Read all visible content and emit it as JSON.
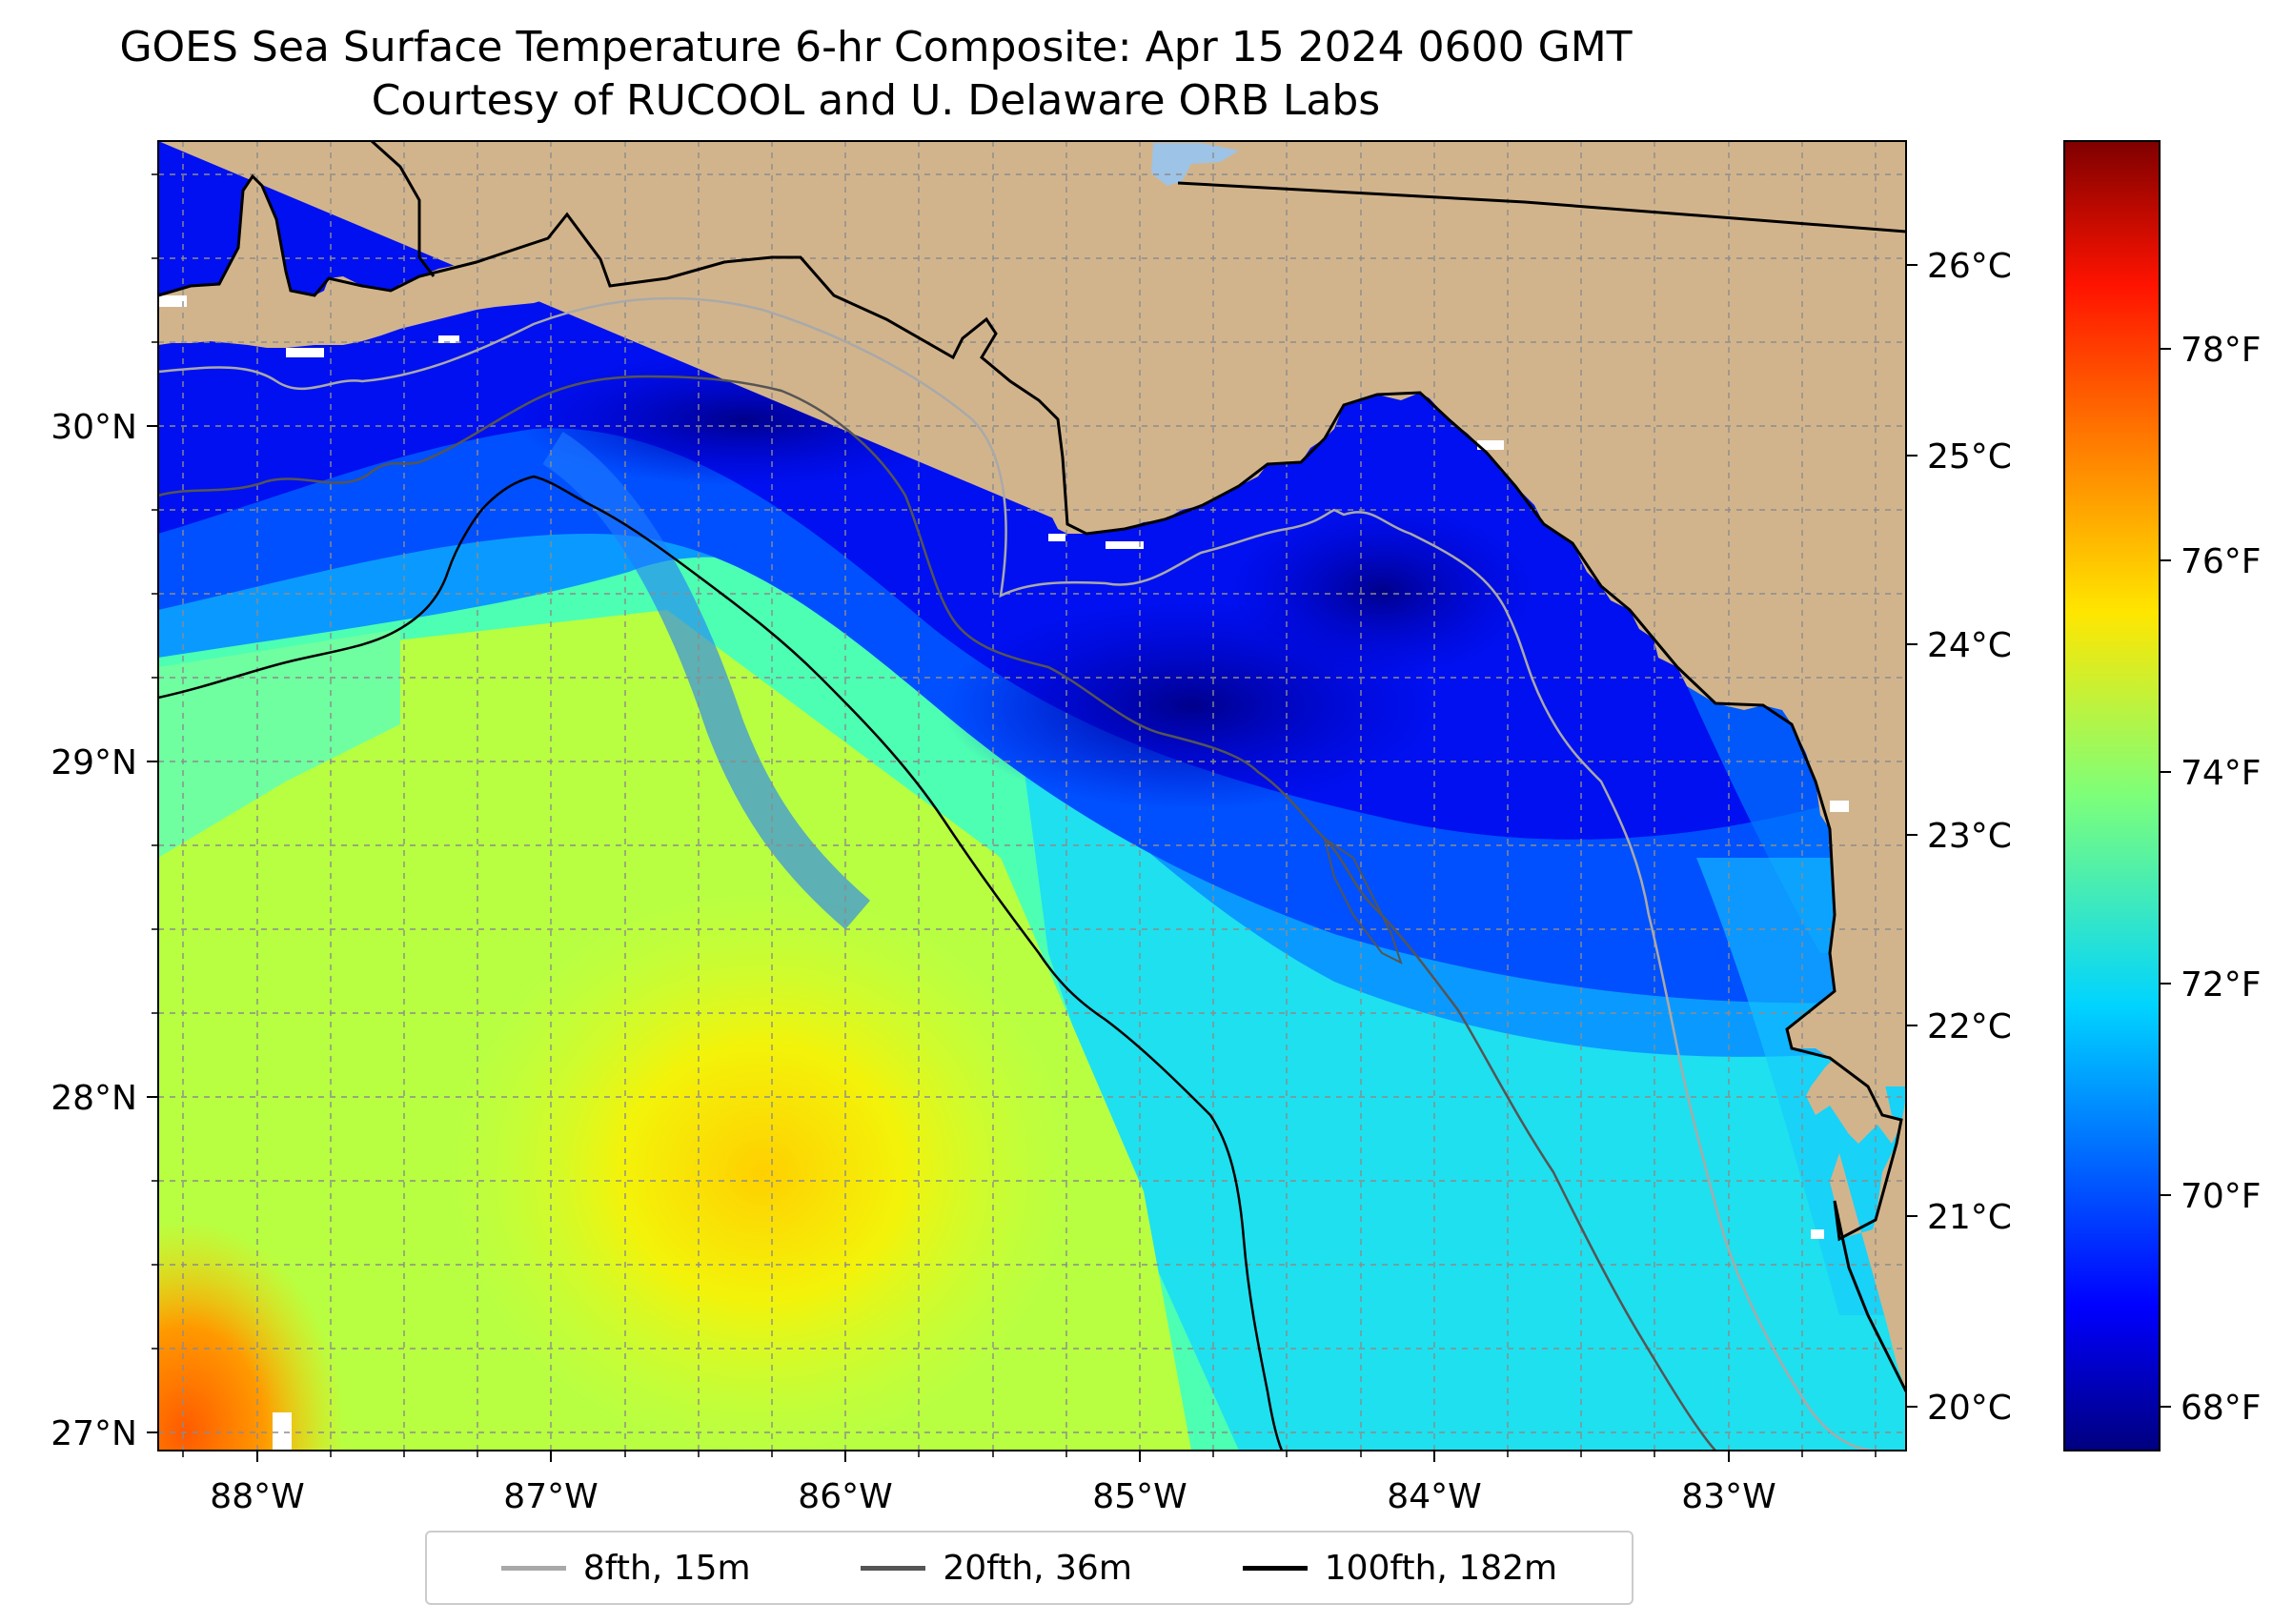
{
  "title": {
    "line1": "GOES Sea Surface Temperature 6-hr Composite: Apr 15 2024 0600 GMT",
    "line2": "Courtesy of RUCOOL and U. Delaware ORB Labs"
  },
  "map": {
    "region": "Northeastern Gulf of Mexico / Florida Big Bend",
    "land_color": "#d2b48c",
    "coast_color": "#000000",
    "gridlines": true,
    "x_ticks": [
      "88°W",
      "87°W",
      "86°W",
      "85°W",
      "84°W",
      "83°W"
    ],
    "y_ticks": [
      "30°N",
      "29°N",
      "28°N",
      "27°N"
    ],
    "lon_range": [
      -88.33,
      -82.4
    ],
    "lat_range": [
      26.92,
      30.85
    ]
  },
  "colorbar": {
    "colormap": "jet",
    "celsius_ticks": [
      "26°C",
      "25°C",
      "24°C",
      "23°C",
      "22°C",
      "21°C",
      "20°C"
    ],
    "fahrenheit_ticks": [
      "78°F",
      "76°F",
      "74°F",
      "72°F",
      "70°F",
      "68°F"
    ],
    "range_c": [
      19.8,
      26.65
    ]
  },
  "legend": {
    "placement": "bottom-center",
    "items": [
      {
        "label": "8fth, 15m",
        "color": "#a9a9a9"
      },
      {
        "label": "20fth, 36m",
        "color": "#555555"
      },
      {
        "label": "100fth, 182m",
        "color": "#000000"
      }
    ]
  }
}
